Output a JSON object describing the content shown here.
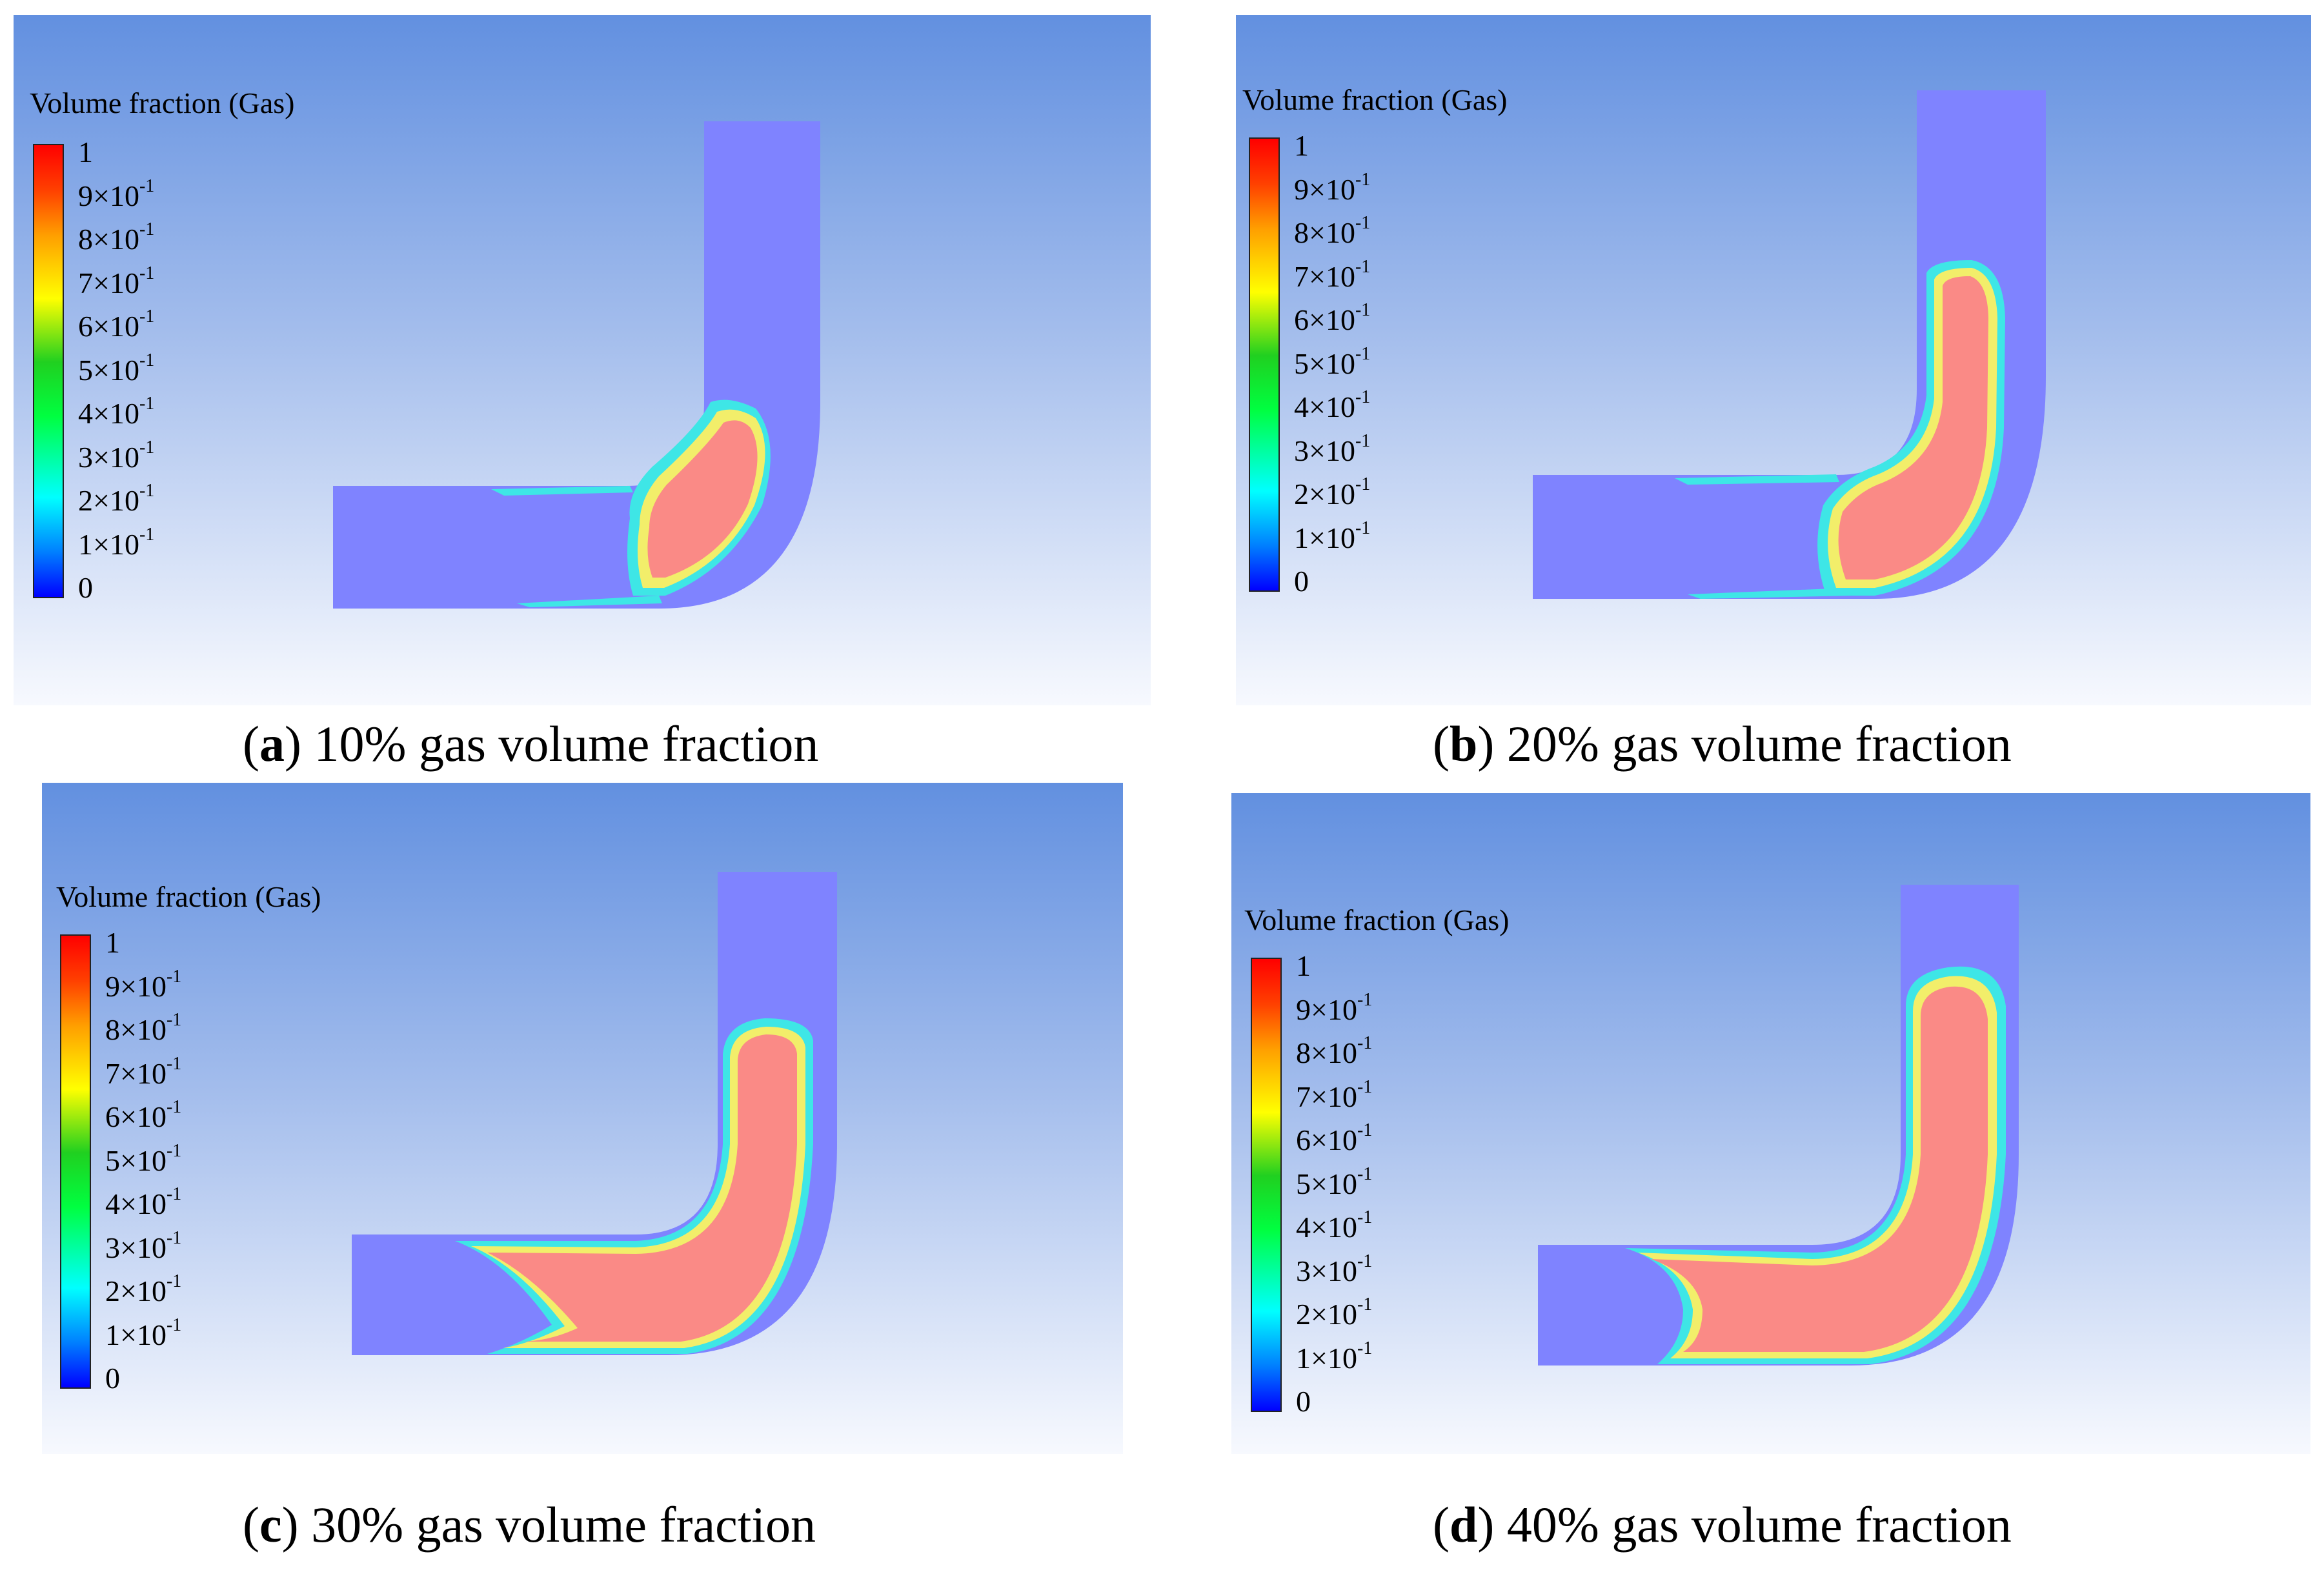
{
  "legend_title": "Volume fraction (Gas)",
  "scale_ticks": [
    {
      "base": "1",
      "exp": ""
    },
    {
      "base": "9×10",
      "exp": "-1"
    },
    {
      "base": "8×10",
      "exp": "-1"
    },
    {
      "base": "7×10",
      "exp": "-1"
    },
    {
      "base": "6×10",
      "exp": "-1"
    },
    {
      "base": "5×10",
      "exp": "-1"
    },
    {
      "base": "4×10",
      "exp": "-1"
    },
    {
      "base": "3×10",
      "exp": "-1"
    },
    {
      "base": "2×10",
      "exp": "-1"
    },
    {
      "base": "1×10",
      "exp": "-1"
    },
    {
      "base": "0",
      "exp": ""
    }
  ],
  "panels": [
    {
      "letter": "a",
      "caption": "10% gas volume fraction",
      "gas_volume_fraction": 0.1
    },
    {
      "letter": "b",
      "caption": "20% gas volume fraction",
      "gas_volume_fraction": 0.2
    },
    {
      "letter": "c",
      "caption": "30% gas volume fraction",
      "gas_volume_fraction": 0.3
    },
    {
      "letter": "d",
      "caption": "40% gas volume fraction",
      "gas_volume_fraction": 0.4
    }
  ],
  "colors": {
    "liquid": "#7f83ff",
    "gas_core": "#fa8a86",
    "interface_yellow": "#f2ee6a",
    "interface_cyan": "#3ee6e6",
    "interface_green": "#5ef28a"
  }
}
